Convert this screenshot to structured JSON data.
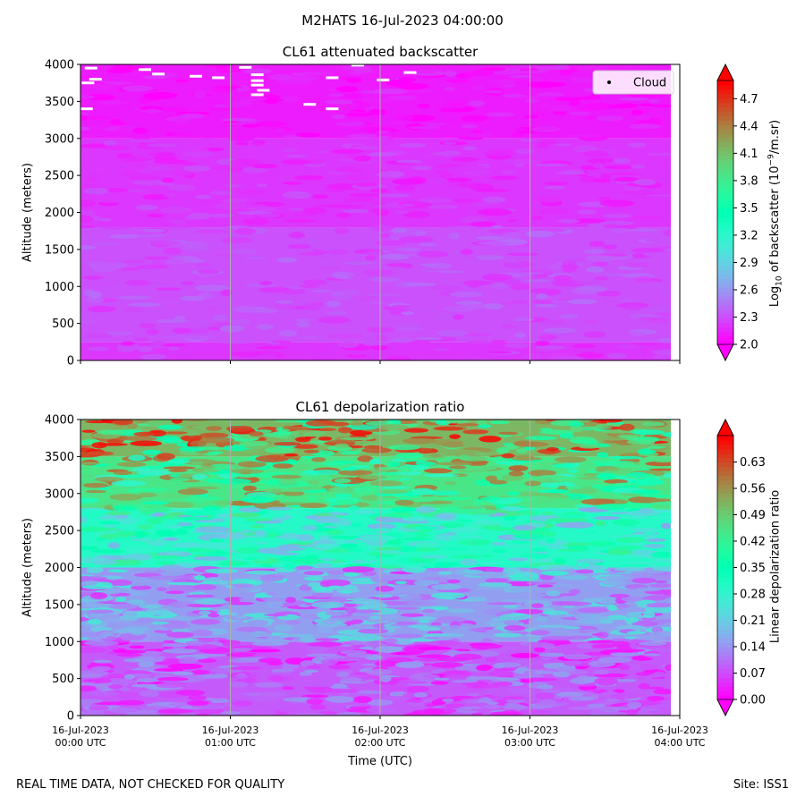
{
  "figure": {
    "suptitle": "M2HATS 16-Jul-2023 04:00:00",
    "footer_left": "REAL TIME DATA, NOT CHECKED FOR QUALITY",
    "footer_right": "Site: ISS1",
    "xlabel": "Time (UTC)"
  },
  "chart_data": [
    {
      "type": "heatmap",
      "title": "CL61 attenuated backscatter",
      "ylabel": "Altitude (meters)",
      "xlabel": "",
      "x_ticks": [
        "16-Jul-2023\n00:00 UTC",
        "16-Jul-2023\n01:00 UTC",
        "16-Jul-2023\n02:00 UTC",
        "16-Jul-2023\n03:00 UTC",
        "16-Jul-2023\n04:00 UTC"
      ],
      "x_range": [
        "16-Jul-2023 00:00 UTC",
        "16-Jul-2023 04:00 UTC"
      ],
      "ylim": [
        0,
        4000
      ],
      "y_ticks": [
        0,
        500,
        1000,
        1500,
        2000,
        2500,
        3000,
        3500,
        4000
      ],
      "grid": "vertical lines at hourly ticks",
      "colorbar": {
        "label": "Log10 of backscatter (10^-9/m.sr)",
        "label_parts": {
          "main": "Log",
          "sub": "10",
          "mid": " of backscatter (10",
          "sup": "−9",
          "end": "/m.sr)"
        },
        "range": [
          2.0,
          4.9
        ],
        "ticks": [
          "2.0",
          "2.3",
          "2.6",
          "2.9",
          "3.2",
          "3.5",
          "3.8",
          "4.1",
          "4.4",
          "4.7"
        ],
        "colormap": "rainbow",
        "extend": "both"
      },
      "legend": {
        "entries": [
          "Cloud"
        ],
        "placement": "top-right",
        "marker_color": "#000000"
      },
      "field_description": [
        {
          "altitude_range": [
            0,
            250
          ],
          "log10_backscatter": 2.2
        },
        {
          "altitude_range": [
            250,
            1800
          ],
          "log10_backscatter": 2.3
        },
        {
          "altitude_range": [
            1800,
            3000
          ],
          "log10_backscatter": 2.2
        },
        {
          "altitude_range": [
            3000,
            4000
          ],
          "log10_backscatter": 2.1
        }
      ],
      "cloud_points": [
        {
          "time_h": 0.07,
          "alt": 3950
        },
        {
          "time_h": 0.1,
          "alt": 3800
        },
        {
          "time_h": 0.05,
          "alt": 3750
        },
        {
          "time_h": 0.04,
          "alt": 3400
        },
        {
          "time_h": 0.43,
          "alt": 3930
        },
        {
          "time_h": 0.52,
          "alt": 3870
        },
        {
          "time_h": 0.77,
          "alt": 3840
        },
        {
          "time_h": 0.92,
          "alt": 3820
        },
        {
          "time_h": 1.1,
          "alt": 3960
        },
        {
          "time_h": 1.18,
          "alt": 3860
        },
        {
          "time_h": 1.18,
          "alt": 3780
        },
        {
          "time_h": 1.18,
          "alt": 3720
        },
        {
          "time_h": 1.22,
          "alt": 3650
        },
        {
          "time_h": 1.18,
          "alt": 3590
        },
        {
          "time_h": 1.53,
          "alt": 3460
        },
        {
          "time_h": 1.68,
          "alt": 3820
        },
        {
          "time_h": 1.68,
          "alt": 3400
        },
        {
          "time_h": 1.85,
          "alt": 3990
        },
        {
          "time_h": 2.02,
          "alt": 3790
        },
        {
          "time_h": 2.2,
          "alt": 3890
        }
      ]
    },
    {
      "type": "heatmap",
      "title": "CL61 depolarization ratio",
      "ylabel": "Altitude (meters)",
      "xlabel": "Time (UTC)",
      "x_ticks": [
        "16-Jul-2023\n00:00 UTC",
        "16-Jul-2023\n01:00 UTC",
        "16-Jul-2023\n02:00 UTC",
        "16-Jul-2023\n03:00 UTC",
        "16-Jul-2023\n04:00 UTC"
      ],
      "x_range": [
        "16-Jul-2023 00:00 UTC",
        "16-Jul-2023 04:00 UTC"
      ],
      "ylim": [
        0,
        4000
      ],
      "y_ticks": [
        0,
        500,
        1000,
        1500,
        2000,
        2500,
        3000,
        3500,
        4000
      ],
      "grid": "vertical lines at hourly ticks",
      "colorbar": {
        "label": "Linear depolarization ratio",
        "range": [
          0.0,
          0.7
        ],
        "ticks": [
          "0.00",
          "0.07",
          "0.14",
          "0.21",
          "0.28",
          "0.35",
          "0.42",
          "0.49",
          "0.56",
          "0.63"
        ],
        "colormap": "rainbow",
        "extend": "both"
      },
      "field_description": [
        {
          "altitude_range": [
            0,
            1000
          ],
          "depol_ratio": 0.08
        },
        {
          "altitude_range": [
            1000,
            2000
          ],
          "depol_ratio": 0.15
        },
        {
          "altitude_range": [
            2000,
            2800
          ],
          "depol_ratio": 0.3
        },
        {
          "altitude_range": [
            2800,
            3500
          ],
          "depol_ratio": 0.45
        },
        {
          "altitude_range": [
            3500,
            4000
          ],
          "depol_ratio": 0.52
        }
      ]
    }
  ]
}
